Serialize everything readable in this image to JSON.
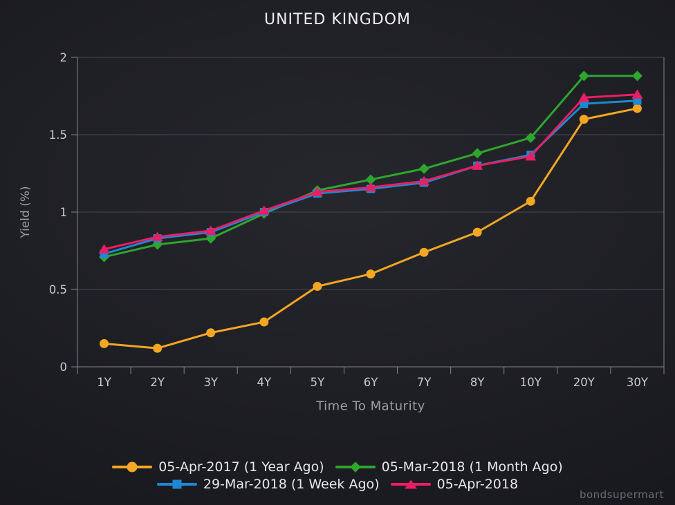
{
  "watermark": {
    "label": "bondsupermart"
  },
  "theme": {
    "background": "#1d1e23",
    "axis_color": "#85878C",
    "grid_color": "#47494F",
    "tick_label_color": "#C9CBCE",
    "axis_title_color": "#9C9EA3",
    "title_color": "#EDEDED",
    "legend_text_color": "#E8E8E8",
    "watermark_color": "#696C73"
  },
  "chart_data": {
    "type": "line",
    "title": "UNITED KINGDOM",
    "xlabel": "Time To Maturity",
    "ylabel": "Yield (%)",
    "categories": [
      "1Y",
      "2Y",
      "3Y",
      "4Y",
      "5Y",
      "6Y",
      "7Y",
      "8Y",
      "10Y",
      "20Y",
      "30Y"
    ],
    "ylim": [
      0,
      2
    ],
    "yticks": [
      0,
      0.5,
      1,
      1.5,
      2
    ],
    "ytick_labels": [
      "0",
      "0.5",
      "1",
      "1.5",
      "2"
    ],
    "grid": "horizontal",
    "legend_position": "bottom",
    "series": [
      {
        "name": "05-Apr-2017 (1 Year Ago)",
        "color": "#F5A623",
        "marker": "circle",
        "values": [
          0.15,
          0.12,
          0.22,
          0.29,
          0.52,
          0.6,
          0.74,
          0.87,
          1.07,
          1.6,
          1.67
        ]
      },
      {
        "name": "05-Mar-2018 (1 Month Ago)",
        "color": "#2EA62E",
        "marker": "diamond",
        "values": [
          0.71,
          0.79,
          0.83,
          0.99,
          1.14,
          1.21,
          1.28,
          1.38,
          1.48,
          1.88,
          1.88
        ]
      },
      {
        "name": "29-Mar-2018 (1 Week Ago)",
        "color": "#1E88D2",
        "marker": "square",
        "values": [
          0.73,
          0.83,
          0.87,
          1.0,
          1.12,
          1.15,
          1.19,
          1.3,
          1.37,
          1.7,
          1.72
        ]
      },
      {
        "name": "05-Apr-2018",
        "color": "#E91E63",
        "marker": "triangle",
        "values": [
          0.76,
          0.84,
          0.88,
          1.01,
          1.13,
          1.16,
          1.2,
          1.3,
          1.36,
          1.74,
          1.76
        ]
      }
    ]
  }
}
